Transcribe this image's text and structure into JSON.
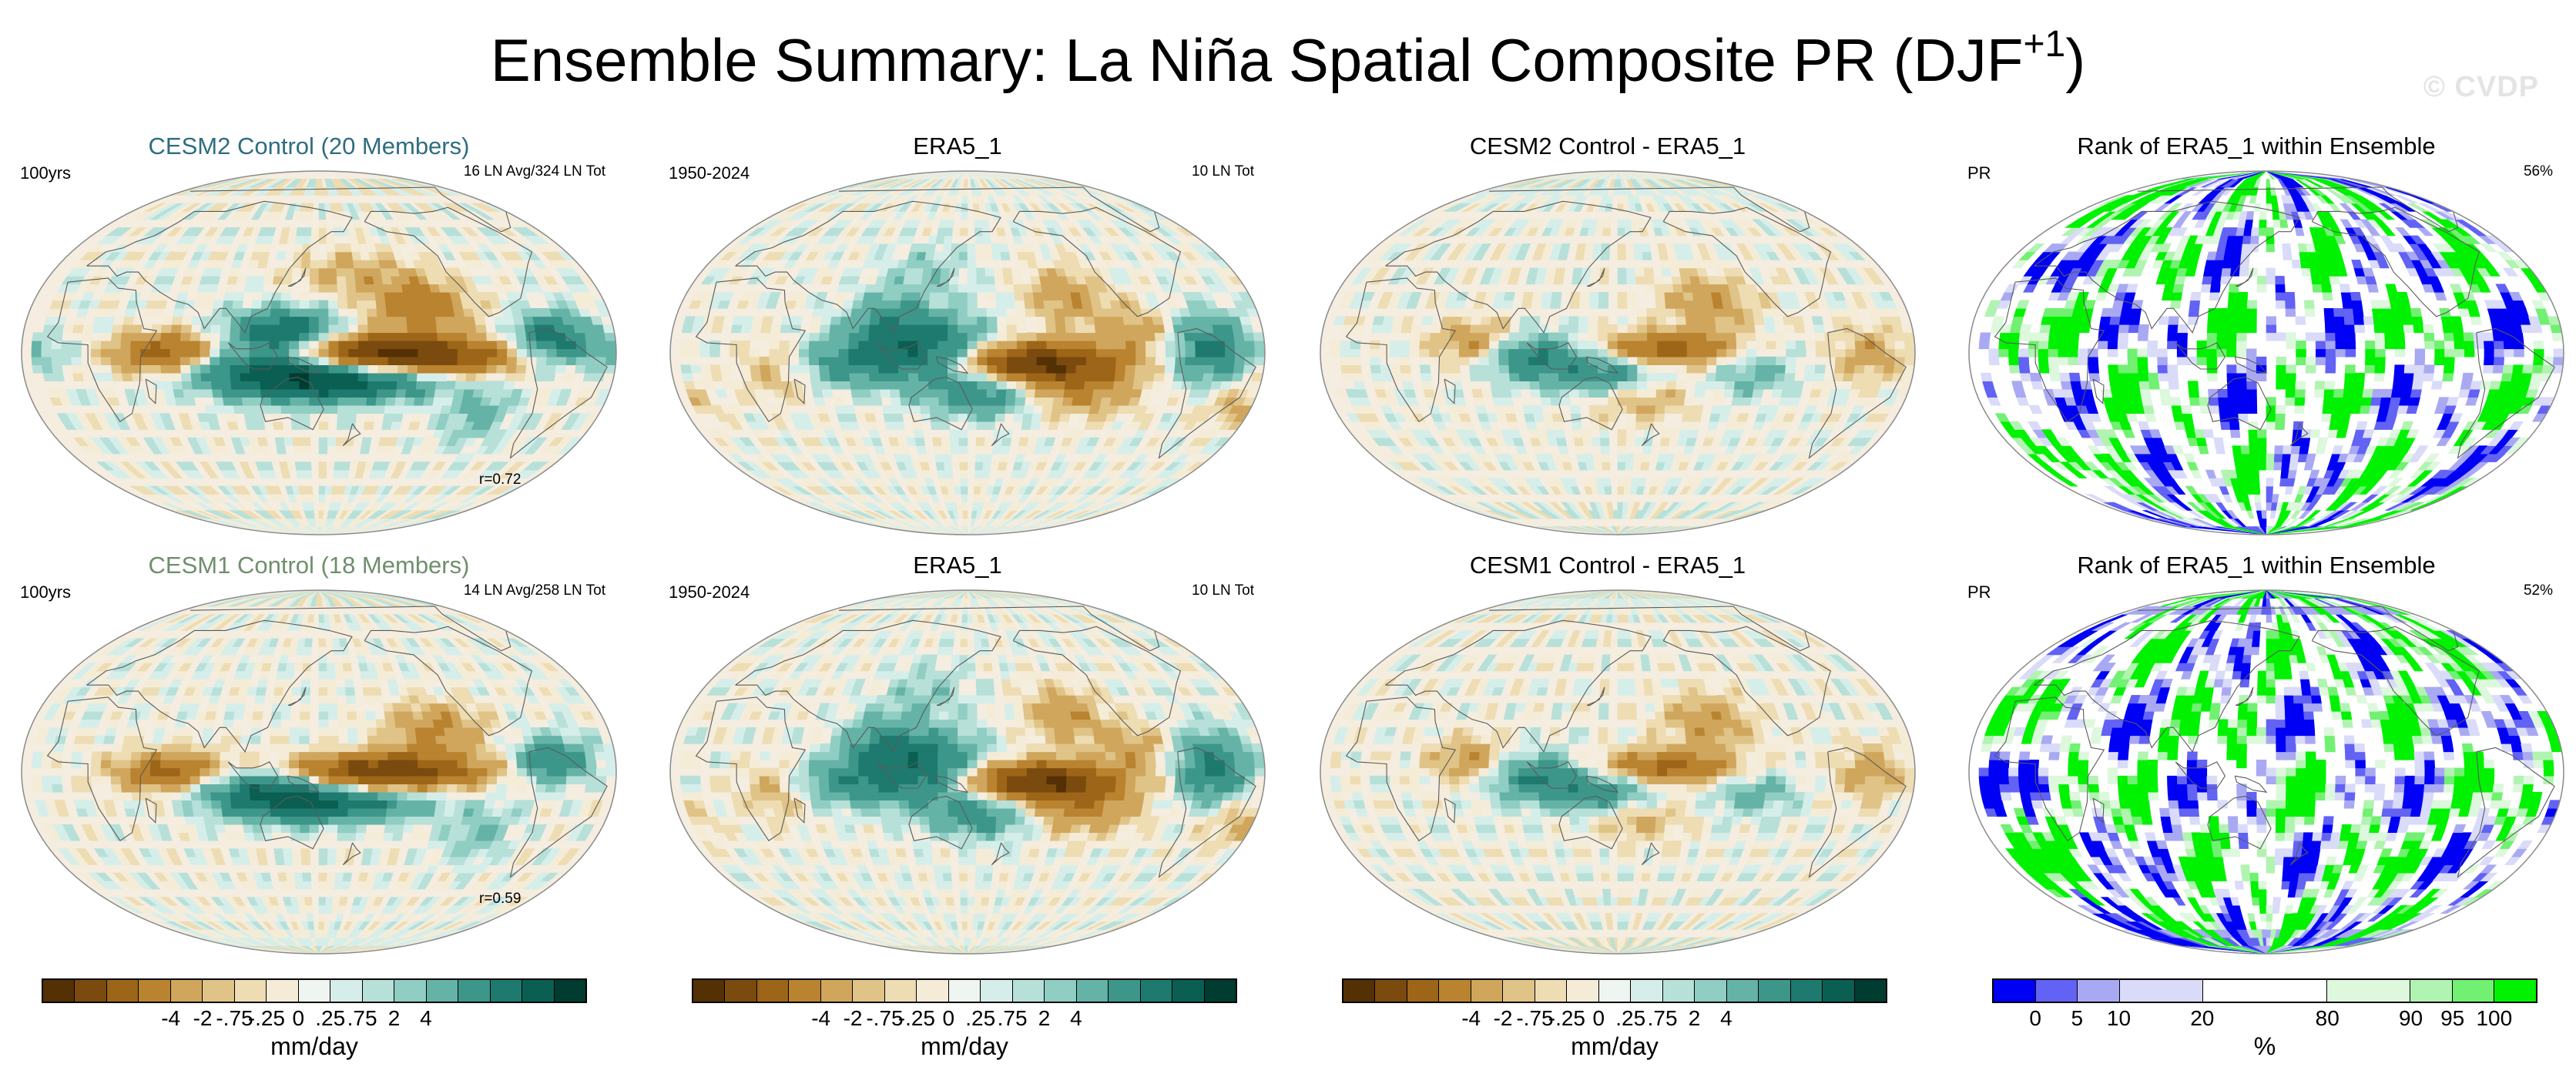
{
  "title": {
    "main": "Ensemble Summary: La Niña Spatial Composite PR (DJF",
    "superscript": "+1",
    "close": ")"
  },
  "watermark": "© CVDP",
  "colors": {
    "diverging": [
      "#543005",
      "#7a4a0e",
      "#9c6518",
      "#b98330",
      "#d0a65d",
      "#e0c387",
      "#eedcb3",
      "#f5ecd8",
      "#eff5f0",
      "#d6eeea",
      "#b7e0d9",
      "#90cdc2",
      "#65b3a7",
      "#3d968a",
      "#1e7a6e",
      "#0a5f52",
      "#003c30"
    ],
    "rank": [
      "#0000f5",
      "#6262f5",
      "#a9a9f3",
      "#d9dbf9",
      "#ffffff",
      "#ddf8dd",
      "#b1f3b1",
      "#71f071",
      "#00f200"
    ],
    "ocean_bg": "#f4ede0",
    "coast": "#5a5a5a"
  },
  "panels": [
    {
      "title": "CESM2 Control (20 Members)",
      "title_color": "#2e6d80",
      "top_left": "100yrs",
      "top_right": "16 LN Avg/324 LN Tot",
      "bottom_right": "r=0.72",
      "kind": "diverging"
    },
    {
      "title": "ERA5_1",
      "title_color": "#000000",
      "top_left": "1950-2024",
      "top_right": "10 LN Tot",
      "bottom_right": "",
      "kind": "diverging"
    },
    {
      "title": "CESM2 Control - ERA5_1",
      "title_color": "#000000",
      "top_left": "",
      "top_right": "",
      "bottom_right": "",
      "kind": "diverging"
    },
    {
      "title": "Rank of ERA5_1 within Ensemble",
      "title_color": "#000000",
      "top_left": "PR",
      "top_right": "56%",
      "bottom_right": "",
      "kind": "rank"
    },
    {
      "title": "CESM1 Control (18 Members)",
      "title_color": "#6f8f6c",
      "top_left": "100yrs",
      "top_right": "14 LN Avg/258 LN Tot",
      "bottom_right": "r=0.59",
      "kind": "diverging"
    },
    {
      "title": "ERA5_1",
      "title_color": "#000000",
      "top_left": "1950-2024",
      "top_right": "10 LN Tot",
      "bottom_right": "",
      "kind": "diverging"
    },
    {
      "title": "CESM1 Control - ERA5_1",
      "title_color": "#000000",
      "top_left": "",
      "top_right": "",
      "bottom_right": "",
      "kind": "diverging"
    },
    {
      "title": "Rank of ERA5_1 within Ensemble",
      "title_color": "#000000",
      "top_left": "PR",
      "top_right": "52%",
      "bottom_right": "",
      "kind": "rank"
    }
  ],
  "colorbars": {
    "diverging": {
      "labels": [
        "-4",
        "-2",
        "-.75",
        "-.25",
        "0",
        ".25",
        ".75",
        "2",
        "4"
      ],
      "unit": "mm/day"
    },
    "rank": {
      "labels": [
        "0",
        "5",
        "10",
        "20",
        "80",
        "90",
        "95",
        "100"
      ],
      "unit": "%"
    }
  },
  "chart_data": [
    {
      "type": "heatmap",
      "title": "CESM2 Control (20 Members)",
      "variable": "PR",
      "units": "mm/day",
      "season": "DJF+1",
      "composite": "La Niña",
      "levels": [
        -4,
        -2,
        -0.75,
        -0.25,
        0,
        0.25,
        0.75,
        2,
        4
      ],
      "pattern_correlation": 0.72,
      "features": [
        {
          "region": "Central equatorial Pacific",
          "anomaly": "dry (≈ -4)"
        },
        {
          "region": "Maritime Continent / Western Pacific",
          "anomaly": "wet (≈ +2 to +4)"
        },
        {
          "region": "Western Indian Ocean",
          "anomaly": "dry"
        }
      ]
    },
    {
      "type": "heatmap",
      "title": "ERA5_1",
      "variable": "PR",
      "units": "mm/day",
      "period": "1950-2024",
      "levels": [
        -4,
        -2,
        -0.75,
        -0.25,
        0,
        0.25,
        0.75,
        2,
        4
      ],
      "features": [
        {
          "region": "Central equatorial Pacific",
          "anomaly": "dry (≈ -4)"
        },
        {
          "region": "Maritime Continent",
          "anomaly": "wet"
        },
        {
          "region": "Northern South America",
          "anomaly": "wet"
        }
      ]
    },
    {
      "type": "heatmap",
      "title": "CESM2 Control - ERA5_1",
      "variable": "PR",
      "units": "mm/day",
      "levels": [
        -4,
        -2,
        -0.75,
        -0.25,
        0,
        0.25,
        0.75,
        2,
        4
      ]
    },
    {
      "type": "heatmap",
      "title": "Rank of ERA5_1 within Ensemble",
      "variable": "PR",
      "units": "%",
      "levels": [
        0,
        5,
        10,
        20,
        80,
        90,
        95,
        100
      ],
      "summary_percent": 56
    },
    {
      "type": "heatmap",
      "title": "CESM1 Control (18 Members)",
      "variable": "PR",
      "units": "mm/day",
      "levels": [
        -4,
        -2,
        -0.75,
        -0.25,
        0,
        0.25,
        0.75,
        2,
        4
      ],
      "pattern_correlation": 0.59
    },
    {
      "type": "heatmap",
      "title": "ERA5_1",
      "variable": "PR",
      "units": "mm/day",
      "period": "1950-2024",
      "levels": [
        -4,
        -2,
        -0.75,
        -0.25,
        0,
        0.25,
        0.75,
        2,
        4
      ]
    },
    {
      "type": "heatmap",
      "title": "CESM1 Control - ERA5_1",
      "variable": "PR",
      "units": "mm/day",
      "levels": [
        -4,
        -2,
        -0.75,
        -0.25,
        0,
        0.25,
        0.75,
        2,
        4
      ]
    },
    {
      "type": "heatmap",
      "title": "Rank of ERA5_1 within Ensemble",
      "variable": "PR",
      "units": "%",
      "levels": [
        0,
        5,
        10,
        20,
        80,
        90,
        95,
        100
      ],
      "summary_percent": 52
    }
  ]
}
